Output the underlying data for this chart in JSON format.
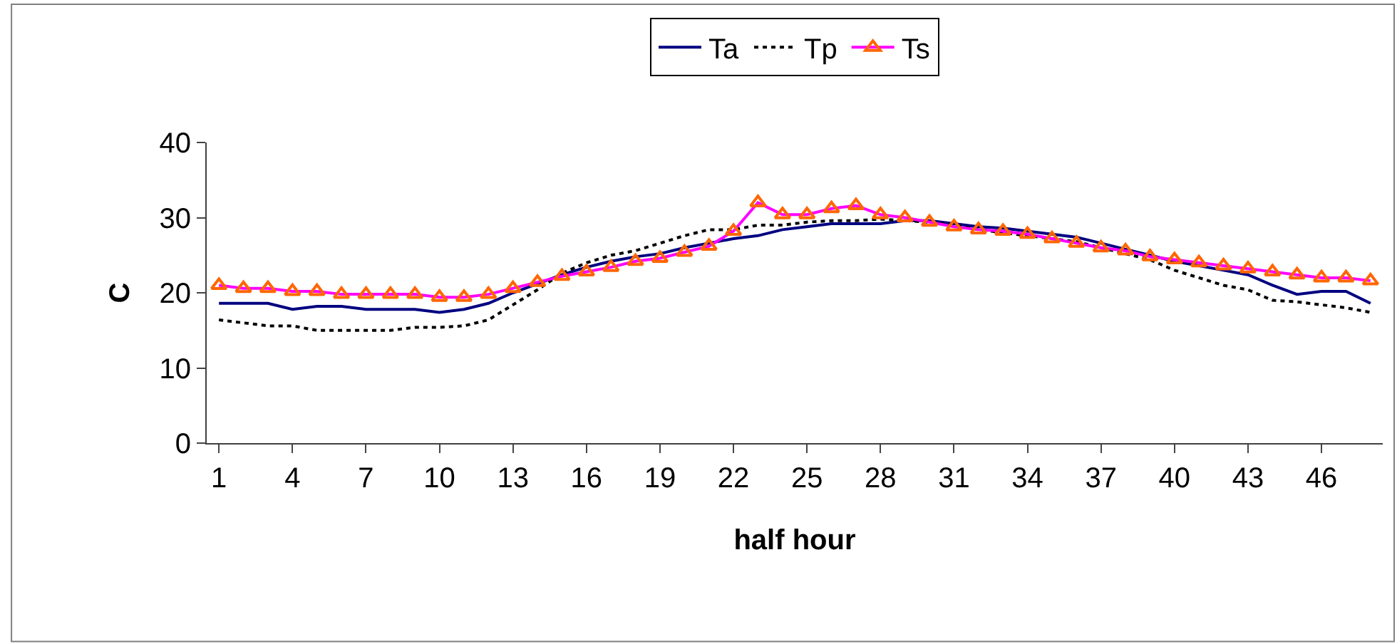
{
  "chart_data": {
    "type": "line",
    "xlabel": "half hour",
    "ylabel": "C",
    "categories": [
      "1",
      null,
      null,
      "4",
      null,
      null,
      "7",
      null,
      null,
      "10",
      null,
      null,
      "13",
      null,
      null,
      "16",
      null,
      null,
      "19",
      null,
      null,
      "22",
      null,
      null,
      "25",
      null,
      null,
      "28",
      null,
      null,
      "31",
      null,
      null,
      "34",
      null,
      null,
      "37",
      null,
      null,
      "40",
      null,
      null,
      "43",
      null,
      null,
      "46",
      null,
      null
    ],
    "ylim": [
      0,
      40
    ],
    "yticks": [
      0,
      10,
      20,
      30,
      40
    ],
    "legend": "top",
    "series": [
      {
        "name": "Ta",
        "color": "#000080",
        "line_style": "solid",
        "marker": "none",
        "values": [
          18.6,
          18.6,
          18.6,
          17.8,
          18.2,
          18.2,
          17.8,
          17.8,
          17.8,
          17.4,
          17.8,
          18.6,
          20,
          21.2,
          22.4,
          23.4,
          24.2,
          24.8,
          25.2,
          26,
          26.6,
          27.2,
          27.6,
          28.4,
          28.8,
          29.2,
          29.2,
          29.2,
          29.6,
          29.6,
          29.2,
          28.8,
          28.6,
          28.2,
          27.8,
          27.4,
          26.6,
          25.8,
          25,
          24.2,
          23.6,
          23,
          22.4,
          21,
          19.8,
          20.2,
          20.2,
          18.6
        ]
      },
      {
        "name": "Tp",
        "color": "#000000",
        "line_style": "dotted",
        "marker": "none",
        "values": [
          16.4,
          16,
          15.6,
          15.6,
          15,
          15,
          15,
          15,
          15.4,
          15.4,
          15.6,
          16.4,
          18.4,
          20.4,
          22.6,
          24,
          25,
          25.6,
          26.6,
          27.6,
          28.4,
          28.4,
          29,
          29,
          29.4,
          29.6,
          29.6,
          29.8,
          29.6,
          29.4,
          29,
          28.4,
          28,
          27.6,
          27.2,
          26.8,
          26,
          25.2,
          24.4,
          23,
          22,
          21,
          20.4,
          19,
          18.8,
          18.4,
          18,
          17.4
        ]
      },
      {
        "name": "Ts",
        "color": "#ff00ff",
        "line_style": "solid",
        "marker": "triangle",
        "colors": [
          "#ff6600",
          "#ff6600",
          "#ff6600",
          "#ff6600",
          "#ff6600",
          "#ff6600",
          "#ff6600",
          "#ff6600",
          "#ff6600",
          "#ff6600",
          "#ff6600",
          "#ff6600",
          "#ff6600",
          "#ff6600",
          "#ff6600",
          "#ff6600",
          "#ff6600",
          "#ff6600",
          "#ff6600",
          "#ff6600",
          "#ff6600",
          "#ff6600",
          "#ff6600",
          "#ff6600",
          "#ff6600",
          "#ff6600",
          "#ff6600",
          "#ff6600",
          "#ff6600",
          "#ff6600",
          "#ff6600",
          "#ff6600",
          "#ff6600",
          "#ff6600",
          "#ff6600",
          "#ff6600",
          "#ff6600",
          "#ff6600",
          "#ff6600",
          "#ff6600",
          "#ff6600",
          "#ff6600",
          "#ff6600",
          "#ff6600",
          "#ff6600",
          "#ff6600",
          "#ff6600",
          "#ff6600"
        ],
        "values": [
          21,
          20.6,
          20.6,
          20.2,
          20.2,
          19.8,
          19.8,
          19.8,
          19.8,
          19.4,
          19.4,
          19.8,
          20.6,
          21.4,
          22.2,
          22.8,
          23.4,
          24.2,
          24.6,
          25.4,
          26.2,
          28.2,
          32,
          30.4,
          30.4,
          31.2,
          31.6,
          30.4,
          30,
          29.4,
          28.8,
          28.4,
          28.2,
          27.8,
          27.2,
          26.6,
          26,
          25.6,
          24.8,
          24.4,
          24,
          23.6,
          23.2,
          22.8,
          22.4,
          22,
          22,
          21.6
        ]
      }
    ]
  }
}
